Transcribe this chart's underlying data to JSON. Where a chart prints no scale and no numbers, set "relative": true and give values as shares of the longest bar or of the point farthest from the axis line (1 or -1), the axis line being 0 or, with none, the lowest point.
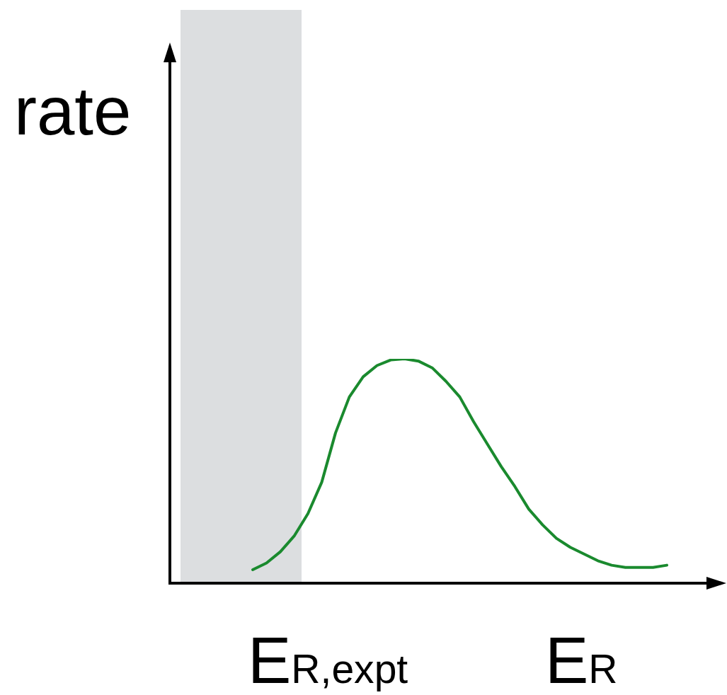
{
  "chart_data": {
    "type": "line",
    "xlabel": "E$_{R}$",
    "ylabel": "rate",
    "relative": true,
    "categories": [
      null,
      null,
      null,
      null,
      null,
      null,
      null,
      null,
      null,
      null,
      null,
      null,
      null,
      null,
      null,
      null,
      null,
      null,
      null,
      null,
      null,
      null,
      null,
      null,
      null,
      null,
      null,
      null,
      null,
      null,
      null,
      null,
      null,
      null,
      null,
      null,
      null,
      null,
      null,
      null,
      null
    ],
    "series": [
      {
        "color": "#1a8a2e",
        "values": [
          null,
          null,
          null,
          null,
          null,
          null,
          0.06,
          0.09,
          0.14,
          0.21,
          0.31,
          0.45,
          0.67,
          0.83,
          0.92,
          0.97,
          0.995,
          1,
          0.99,
          0.96,
          0.9,
          0.83,
          0.72,
          0.62,
          0.52,
          0.43,
          0.33,
          0.26,
          0.2,
          0.16,
          0.13,
          0.1,
          0.08,
          0.07,
          0.07,
          0.07,
          0.08,
          null,
          null,
          null,
          null
        ]
      }
    ],
    "annotations": [
      "E$_{R,expt}$"
    ]
  }
}
